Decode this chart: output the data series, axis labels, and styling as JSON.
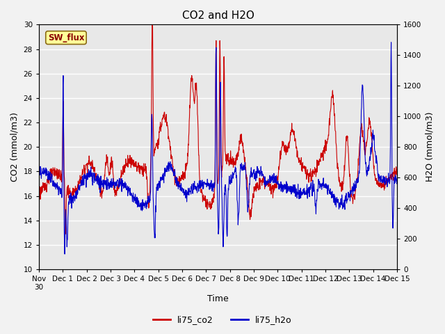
{
  "title": "CO2 and H2O",
  "xlabel": "Time",
  "ylabel_left": "CO2 (mmol/m3)",
  "ylabel_right": "H2O (mmol/m3)",
  "ylim_left": [
    10,
    30
  ],
  "ylim_right": [
    0,
    1600
  ],
  "yticks_left": [
    10,
    12,
    14,
    16,
    18,
    20,
    22,
    24,
    26,
    28,
    30
  ],
  "yticks_right": [
    0,
    200,
    400,
    600,
    800,
    1000,
    1200,
    1400,
    1600
  ],
  "xtick_labels": [
    "Nov 30",
    "Dec 1",
    "Dec 2",
    "Dec 3",
    "Dec 4",
    "Dec 5",
    "Dec 6",
    "Dec 7",
    "Dec 8",
    "Dec 9",
    "Dec 10",
    "Dec 11",
    "Dec 12",
    "Dec 13",
    "Dec 14",
    "Dec 15"
  ],
  "co2_color": "#cc0000",
  "h2o_color": "#0000cc",
  "line_width": 0.8,
  "bg_color": "#e8e8e8",
  "sw_flux_label": "SW_flux",
  "sw_flux_bg": "#ffff99",
  "sw_flux_border": "#8b6914",
  "legend_labels": [
    "li75_co2",
    "li75_h2o"
  ],
  "title_fontsize": 11,
  "axis_label_fontsize": 9,
  "tick_fontsize": 7.5,
  "fig_width": 6.4,
  "fig_height": 4.8,
  "fig_dpi": 100
}
